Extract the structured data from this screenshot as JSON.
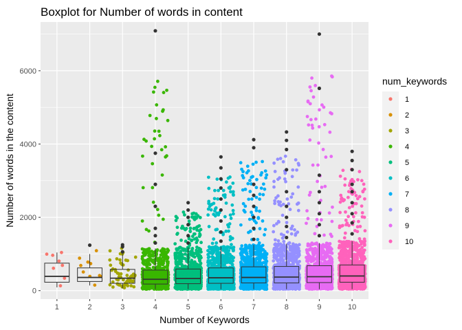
{
  "chart_data": {
    "type": "boxplot",
    "title": "Boxplot for Number of words in content",
    "xlabel": "Number of Keywords",
    "ylabel": "Number of words in the content",
    "categories": [
      "1",
      "2",
      "3",
      "4",
      "5",
      "6",
      "7",
      "8",
      "9",
      "10"
    ],
    "y_ticks": [
      0,
      2000,
      4000,
      6000
    ],
    "ylim": [
      -230,
      7330
    ],
    "grid": true,
    "legend": {
      "title": "num_keywords",
      "position": "right",
      "labels": [
        "1",
        "2",
        "3",
        "4",
        "5",
        "6",
        "7",
        "8",
        "9",
        "10"
      ]
    },
    "colors": [
      "#F8766D",
      "#D89000",
      "#A3A500",
      "#39B600",
      "#00BF7D",
      "#00BFC4",
      "#00B0F6",
      "#9590FF",
      "#E76BF3",
      "#FF62BC"
    ],
    "panel_background": "#EBEBEB",
    "boxes": [
      {
        "q1": 230,
        "median": 390,
        "q3": 750,
        "whisker_low": 90,
        "whisker_high": 1040,
        "outliers": []
      },
      {
        "q1": 250,
        "median": 360,
        "q3": 620,
        "whisker_low": 140,
        "whisker_high": 1000,
        "outliers": [
          1240
        ]
      },
      {
        "q1": 200,
        "median": 340,
        "q3": 580,
        "whisker_low": 60,
        "whisker_high": 1000,
        "outliers": [
          1060,
          1200,
          1250
        ]
      },
      {
        "q1": 180,
        "median": 310,
        "q3": 560,
        "whisker_low": 40,
        "whisker_high": 1150,
        "outliers": [
          1300,
          1500,
          1700,
          2300,
          2900,
          3750,
          7090
        ]
      },
      {
        "q1": 190,
        "median": 330,
        "q3": 590,
        "whisker_low": 40,
        "whisker_high": 1180,
        "outliers": [
          1300,
          1500,
          1800,
          2000,
          2200,
          2400
        ]
      },
      {
        "q1": 200,
        "median": 350,
        "q3": 620,
        "whisker_low": 40,
        "whisker_high": 1200,
        "outliers": [
          1350,
          1600,
          1900,
          2200,
          2500,
          2800,
          3050,
          3350,
          3650
        ]
      },
      {
        "q1": 210,
        "median": 360,
        "q3": 650,
        "whisker_low": 40,
        "whisker_high": 1250,
        "outliers": [
          1400,
          1700,
          2000,
          2300,
          2600,
          2900,
          3900,
          4120
        ]
      },
      {
        "q1": 210,
        "median": 370,
        "q3": 660,
        "whisker_low": 40,
        "whisker_high": 1280,
        "outliers": [
          1450,
          1750,
          2000,
          2300,
          2700,
          3300,
          3850,
          4100,
          4330
        ]
      },
      {
        "q1": 220,
        "median": 380,
        "q3": 680,
        "whisker_low": 40,
        "whisker_high": 1300,
        "outliers": [
          1500,
          1800,
          2100,
          2400,
          2700,
          3150,
          5520,
          7000
        ]
      },
      {
        "q1": 230,
        "median": 400,
        "q3": 700,
        "whisker_low": 40,
        "whisker_high": 1350,
        "outliers": [
          1550,
          1850,
          2100,
          2400,
          2700,
          2900,
          3300,
          3550,
          3800
        ]
      }
    ],
    "jitter_counts": [
      8,
      10,
      60,
      700,
      900,
      1000,
      1100,
      1000,
      1000,
      1100
    ]
  }
}
